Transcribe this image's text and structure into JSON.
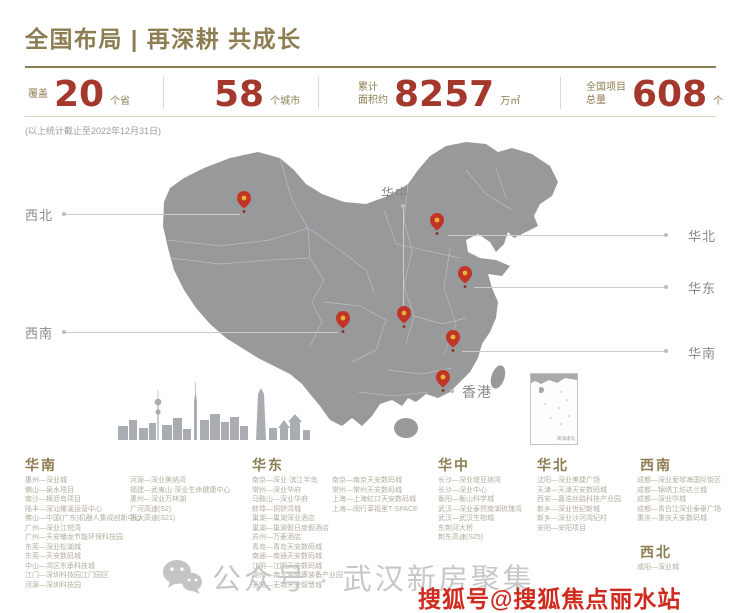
{
  "header": {
    "title": "全国布局 | 再深耕 共成长"
  },
  "stats": [
    {
      "prefix_line1": "覆盖",
      "prefix_line2": "",
      "value": "20",
      "suffix": "个省"
    },
    {
      "prefix_line1": "",
      "prefix_line2": "",
      "value": "58",
      "suffix": "个城市"
    },
    {
      "prefix_line1": "累计",
      "prefix_line2": "面积约",
      "value": "8257",
      "suffix": "万㎡"
    },
    {
      "prefix_line1": "全国项目",
      "prefix_line2": "总量",
      "value": "608",
      "suffix": "个"
    }
  ],
  "note": "(以上统计截止至2022年12月31日)",
  "map": {
    "labels": {
      "xibei": "西北",
      "xinan": "西南",
      "huazhong": "华中",
      "huabei": "华北",
      "huadong": "华东",
      "huanan": "华南",
      "hongkong": "香港"
    },
    "inset_caption": "南海诸岛"
  },
  "regions": [
    {
      "name": "华南",
      "columns": [
        [
          "惠州—深业城",
          "佛山—泉水项目",
          "南沙—横沥岛项目",
          "陆丰—深汕螺溪运营中心",
          "佛山—中国(广东)机器人集成创新中心",
          "广州—深业江悦湾",
          "广州—天安蟠龙节能环保科技园",
          "东莞—深业松湖城",
          "东莞—天安数码城",
          "中山—湾区东承科技城",
          "江门—深圳科技园江门园区",
          "河源—深圳科技园"
        ],
        [
          "河源—深业美纳湾",
          "福建—武夷山·深业生命健康中心",
          "惠州—深业万林湖",
          "广河高速(S2)",
          "惠大高速(S21)"
        ]
      ]
    },
    {
      "name": "华东",
      "columns": [
        [
          "南京—深业·滨江半岛",
          "常州—深业华府",
          "马鞍山—深业华府",
          "蚌埠—铜锣湾城",
          "巢湖—巢湖深业酒店",
          "巢湖—巢湖假日度假酒店",
          "苏州—万豪酒店",
          "青岛—青岛天安数码城",
          "南通—南通天安数码城",
          "江阴—江阴天安数码城",
          "湖州—南太湖健康装备产业园",
          "无锡—无锡天安智慧城"
        ],
        [
          "南京—南京天安数码城",
          "常州—常州天安数码城",
          "上海—上海虹口天安数码城",
          "上海—闵行莘福里T·SPACE"
        ]
      ]
    },
    {
      "name": "华中",
      "columns": [
        [
          "长沙—深业堤亚纳湾",
          "长沙—深业中心",
          "衡阳—衡山科学城",
          "武汉—深业泰然南湖玫瑰湾",
          "武汉—武汉生物城",
          "东荆河大桥",
          "荆东高速(S25)"
        ]
      ]
    },
    {
      "name": "华北",
      "columns": [
        [
          "沈阳—深业美捷广场",
          "天津—天津天安数码城",
          "西安—嘉浩丝路科技产业园",
          "新乡—深业世纪新城",
          "新乡—深业沙河湾纪村",
          "安阳—安阳项目"
        ]
      ]
    },
    {
      "name": "西南",
      "columns": [
        [
          "成都—深业爱琴海国际街区",
          "成都—锦绣工坊达兰城",
          "成都—深业华城",
          "成都—青白江深业泰豪广场",
          "重庆—重庆天安数码城"
        ]
      ]
    },
    {
      "name": "西北",
      "columns": [
        [
          "咸阳—深业城"
        ]
      ]
    }
  ],
  "footer": {
    "wechat_label": "公众号 · 武汉新房聚集",
    "red_watermark": "搜狐号@搜狐焦点丽水站"
  },
  "colors": {
    "accent_olive": "#8d7d52",
    "stat_red": "#a5382d",
    "map_gray": "#97999b",
    "pin_red": "#c13527",
    "watermark_red": "#cf2a1e"
  }
}
